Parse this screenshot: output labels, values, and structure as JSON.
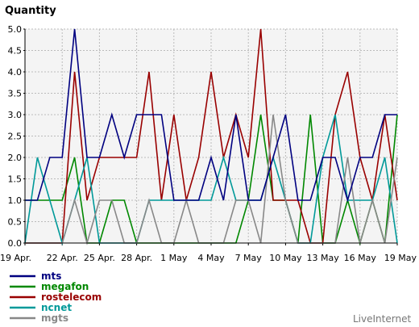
{
  "chart_data": {
    "type": "line",
    "title": "",
    "ylabel": "Quantity",
    "xlabel": "",
    "ylim": [
      0,
      5
    ],
    "yticks": [
      "0.0",
      "0.5",
      "1.0",
      "1.5",
      "2.0",
      "2.5",
      "3.0",
      "3.5",
      "4.0",
      "4.5",
      "5.0"
    ],
    "xtick_labels": [
      "19 Apr.",
      "22 Apr.",
      "25 Apr.",
      "28 Apr.",
      "1 May",
      "4 May",
      "7 May",
      "10 May",
      "13 May",
      "16 May",
      "19 May"
    ],
    "x_days": 31,
    "grid": true,
    "legend_position": "bottom-left",
    "series": [
      {
        "name": "mts",
        "color": "#000080",
        "values": [
          1,
          1,
          2,
          2,
          5,
          2,
          2,
          3,
          2,
          3,
          3,
          3,
          1,
          1,
          1,
          2,
          1,
          3,
          1,
          1,
          2,
          3,
          1,
          1,
          2,
          2,
          1,
          2,
          2,
          3,
          3
        ]
      },
      {
        "name": "megafon",
        "color": "#008800",
        "values": [
          1,
          1,
          1,
          1,
          2,
          0,
          0,
          1,
          1,
          0,
          0,
          0,
          0,
          0,
          0,
          0,
          0,
          0,
          1,
          3,
          1,
          1,
          0,
          3,
          0,
          0,
          1,
          0,
          1,
          0,
          3
        ]
      },
      {
        "name": "rostelecom",
        "color": "#990000",
        "values": [
          0,
          0,
          0,
          0,
          4,
          1,
          2,
          2,
          2,
          2,
          4,
          1,
          3,
          1,
          2,
          4,
          2,
          3,
          2,
          5,
          1,
          1,
          1,
          0,
          0,
          3,
          4,
          2,
          1,
          3,
          1
        ]
      },
      {
        "name": "ncnet",
        "color": "#009999",
        "values": [
          0,
          2,
          1,
          0,
          1,
          2,
          0,
          0,
          0,
          0,
          1,
          1,
          1,
          1,
          1,
          1,
          2,
          1,
          1,
          1,
          2,
          1,
          0,
          0,
          2,
          3,
          1,
          1,
          1,
          2,
          0
        ]
      },
      {
        "name": "mgts",
        "color": "#888888",
        "values": [
          0,
          0,
          0,
          0,
          1,
          0,
          1,
          1,
          0,
          0,
          1,
          0,
          0,
          1,
          0,
          0,
          0,
          1,
          1,
          0,
          3,
          1,
          0,
          0,
          0,
          0,
          2,
          0,
          1,
          0,
          2
        ]
      }
    ]
  },
  "credit": "LiveInternet"
}
